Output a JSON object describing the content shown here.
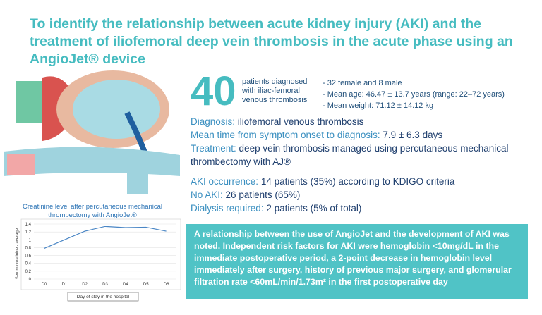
{
  "header": {
    "title": "To identify the relationship between acute kidney injury (AKI) and the treatment of iliofemoral deep vein thrombosis in the acute phase using an AngioJet® device"
  },
  "patients": {
    "count": "40",
    "description": "patients diagnosed with iliac-femoral venous thrombosis",
    "details": [
      "- 32 female and 8 male",
      "- Mean age: 46.47 ± 13.7 years (range: 22–72 years)",
      "- Mean weight: 71.12 ± 14.12 kg"
    ]
  },
  "facts": [
    {
      "label": "Diagnosis:",
      "value": "iliofemoral venous thrombosis"
    },
    {
      "label": "Mean time from symptom onset to diagnosis:",
      "value": "7.9 ± 6.3 days"
    },
    {
      "label": "Treatment:",
      "value": "deep vein thrombosis managed using percutaneous mechanical thrombectomy with AJ®"
    }
  ],
  "outcomes": [
    {
      "label": "AKI occurrence:",
      "value": "14 patients (35%) according to KDIGO criteria"
    },
    {
      "label": "No AKI:",
      "value": "26 patients (65%)"
    },
    {
      "label": "Dialysis required:",
      "value": "2 patients (5% of total)"
    }
  ],
  "conclusion": "A relationship between the use of AngioJet and the development of AKI was noted. Independent risk factors for AKI were hemoglobin <10mg/dL in the immediate postoperative period, a 2-point decrease in hemoglobin level immediately after surgery, history of previous major surgery, and glomerular filtration rate <60mL/min/1.73m² in the first postoperative day",
  "chart_data": {
    "type": "line",
    "title": "Creatinine level after percutaneous mechanical thrombectomy with AngioJet®",
    "x_label": "Day of stay in the hospital",
    "y_label": "Serum creatinine - average",
    "categories": [
      "D0",
      "D1",
      "D2",
      "D3",
      "D4",
      "D5",
      "D6"
    ],
    "values": [
      0.78,
      1.0,
      1.22,
      1.34,
      1.31,
      1.32,
      1.22
    ],
    "color": "#4a86c5",
    "ylim": [
      0,
      1.4
    ],
    "yticks": [
      0,
      0.2,
      0.4,
      0.6,
      0.8,
      1,
      1.2,
      1.4
    ],
    "grid": true
  }
}
